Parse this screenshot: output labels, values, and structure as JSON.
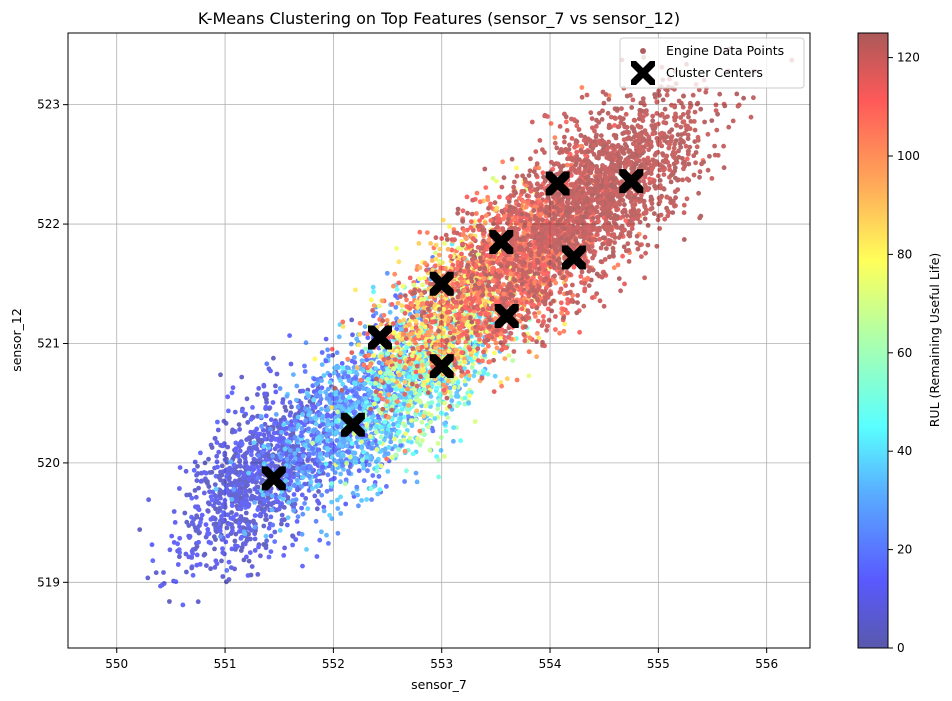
{
  "chart_data": {
    "type": "scatter",
    "title": "K-Means Clustering on Top Features (sensor_7 vs sensor_12)",
    "xlabel": "sensor_7",
    "ylabel": "sensor_12",
    "xlim": [
      549.55,
      556.4
    ],
    "ylim": [
      518.45,
      523.6
    ],
    "xticks": [
      550,
      551,
      552,
      553,
      554,
      555,
      556
    ],
    "yticks": [
      519,
      520,
      521,
      522,
      523
    ],
    "grid": true,
    "legend": {
      "placement": "top-right",
      "entries": [
        "Engine Data Points",
        "Cluster Centers"
      ]
    },
    "colorbar": {
      "label": "RUL (Remaining Useful Life)",
      "range": [
        0,
        125
      ],
      "ticks": [
        0,
        20,
        40,
        60,
        80,
        100,
        120
      ],
      "colormap": "jet"
    },
    "series": [
      {
        "name": "Engine Data Points",
        "marker": "circle",
        "alpha": 0.6,
        "color_by": "RUL",
        "density_clusters": [
          {
            "center": [
              551.3,
              519.9
            ],
            "sd": [
              0.35,
              0.38
            ],
            "rul": [
              2,
              18
            ],
            "count": 1100
          },
          {
            "center": [
              552.2,
              520.4
            ],
            "sd": [
              0.4,
              0.4
            ],
            "rul": [
              15,
              40
            ],
            "count": 1200
          },
          {
            "center": [
              552.9,
              520.8
            ],
            "sd": [
              0.35,
              0.35
            ],
            "rul": [
              30,
              75
            ],
            "count": 900
          },
          {
            "center": [
              553.2,
              521.4
            ],
            "sd": [
              0.4,
              0.4
            ],
            "rul": [
              70,
              125
            ],
            "count": 1300
          },
          {
            "center": [
              553.9,
              521.8
            ],
            "sd": [
              0.4,
              0.4
            ],
            "rul": [
              100,
              125
            ],
            "count": 1400
          },
          {
            "center": [
              554.5,
              522.3
            ],
            "sd": [
              0.45,
              0.4
            ],
            "rul": [
              118,
              125
            ],
            "count": 1500
          }
        ]
      },
      {
        "name": "Cluster Centers",
        "marker": "X",
        "color": "#000000",
        "points": [
          [
            551.45,
            519.87
          ],
          [
            552.18,
            520.32
          ],
          [
            552.43,
            521.05
          ],
          [
            553.0,
            520.81
          ],
          [
            553.0,
            521.5
          ],
          [
            553.55,
            521.85
          ],
          [
            553.6,
            521.23
          ],
          [
            554.07,
            522.34
          ],
          [
            554.22,
            521.72
          ],
          [
            554.75,
            522.36
          ]
        ]
      }
    ]
  },
  "colors": {
    "grid": "#b0b0b0",
    "axes": "#000000",
    "center_marker": "#000000",
    "colormap_stops": [
      "#00007f",
      "#0000ff",
      "#007fff",
      "#00ffff",
      "#7fff7f",
      "#ffff00",
      "#ff7f00",
      "#ff0000",
      "#7f0000"
    ]
  }
}
